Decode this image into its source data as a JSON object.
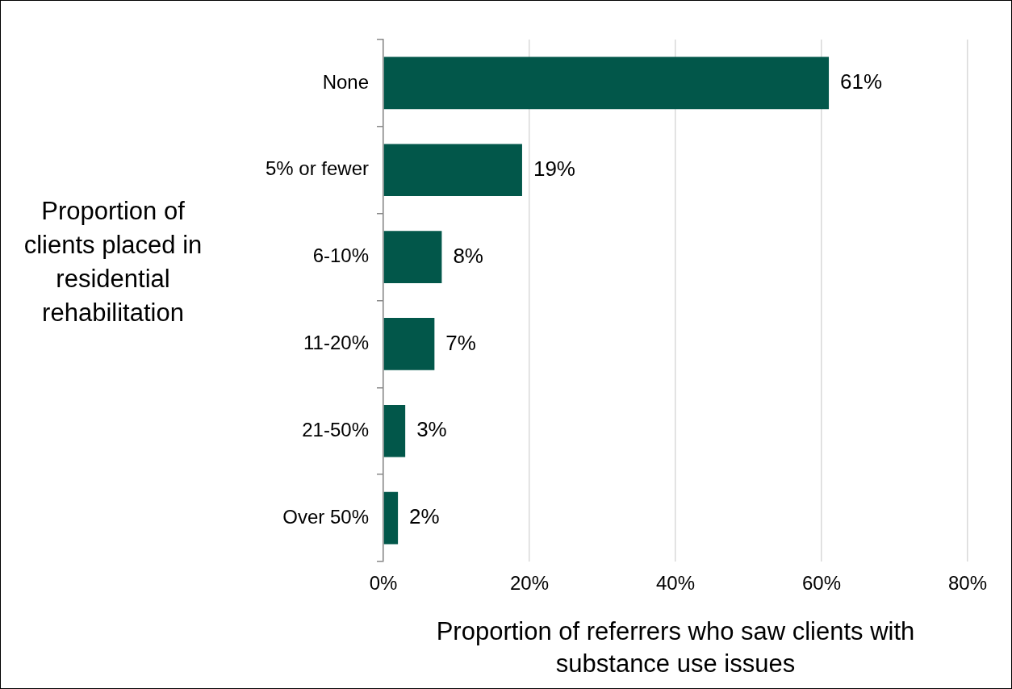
{
  "chart_data": {
    "type": "bar",
    "orientation": "horizontal",
    "xlabel": "Proportion of referrers who saw clients with substance use issues",
    "ylabel": "Proportion of clients placed in residential rehabilitation",
    "categories": [
      "None",
      "5% or fewer",
      "6-10%",
      "11-20%",
      "21-50%",
      "Over 50%"
    ],
    "values": [
      61,
      19,
      8,
      7,
      3,
      2
    ],
    "value_labels": [
      "61%",
      "19%",
      "8%",
      "7%",
      "3%",
      "2%"
    ],
    "color": "#02574a",
    "xlim": [
      0,
      80
    ],
    "xticks": [
      {
        "value": 0,
        "label": "0%"
      },
      {
        "value": 20,
        "label": "20%"
      },
      {
        "value": 40,
        "label": "40%"
      },
      {
        "value": 60,
        "label": "60%"
      },
      {
        "value": 80,
        "label": "80%"
      }
    ],
    "grid": "x"
  }
}
